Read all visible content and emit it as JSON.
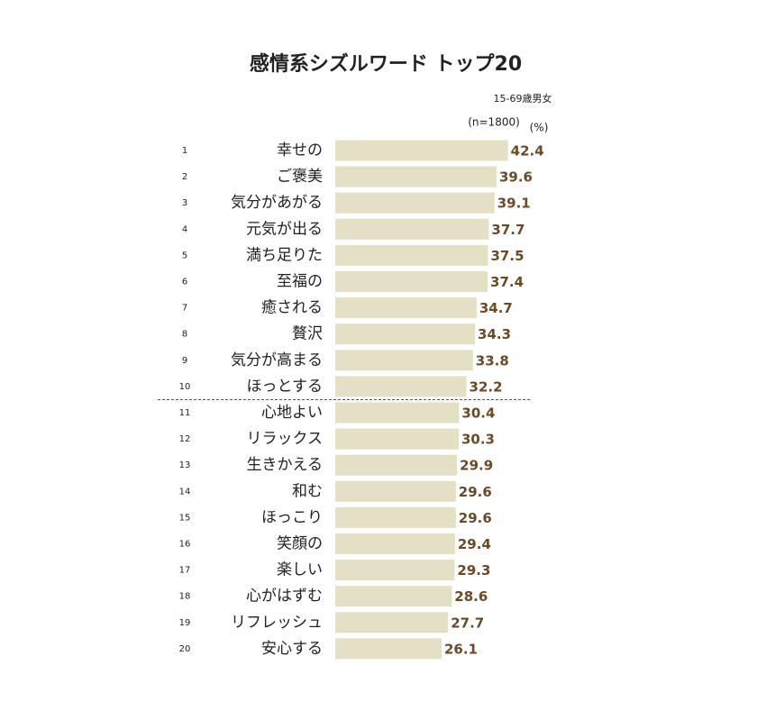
{
  "chart_data": {
    "type": "hbar",
    "title": "感情系シズルワード トップ20",
    "subtitle": "15-69歳男女",
    "sample_note": "(n=1800)",
    "unit_label": "(%)",
    "ranks": [
      1,
      2,
      3,
      4,
      5,
      6,
      7,
      8,
      9,
      10,
      11,
      12,
      13,
      14,
      15,
      16,
      17,
      18,
      19,
      20
    ],
    "categories": [
      "幸せの",
      "ご褒美",
      "気分があがる",
      "元気が出る",
      "満ち足りた",
      "至福の",
      "癒される",
      "贅沢",
      "気分が高まる",
      "ほっとする",
      "心地よい",
      "リラックス",
      "生きかえる",
      "和む",
      "ほっこり",
      "笑顔の",
      "楽しい",
      "心がはずむ",
      "リフレッシュ",
      "安心する"
    ],
    "values": [
      42.4,
      39.6,
      39.1,
      37.7,
      37.5,
      37.4,
      34.7,
      34.3,
      33.8,
      32.2,
      30.4,
      30.3,
      29.9,
      29.6,
      29.6,
      29.4,
      29.3,
      28.6,
      27.7,
      26.1
    ],
    "color": "#e3e0c6",
    "value_label_color": "#6b4a28"
  }
}
